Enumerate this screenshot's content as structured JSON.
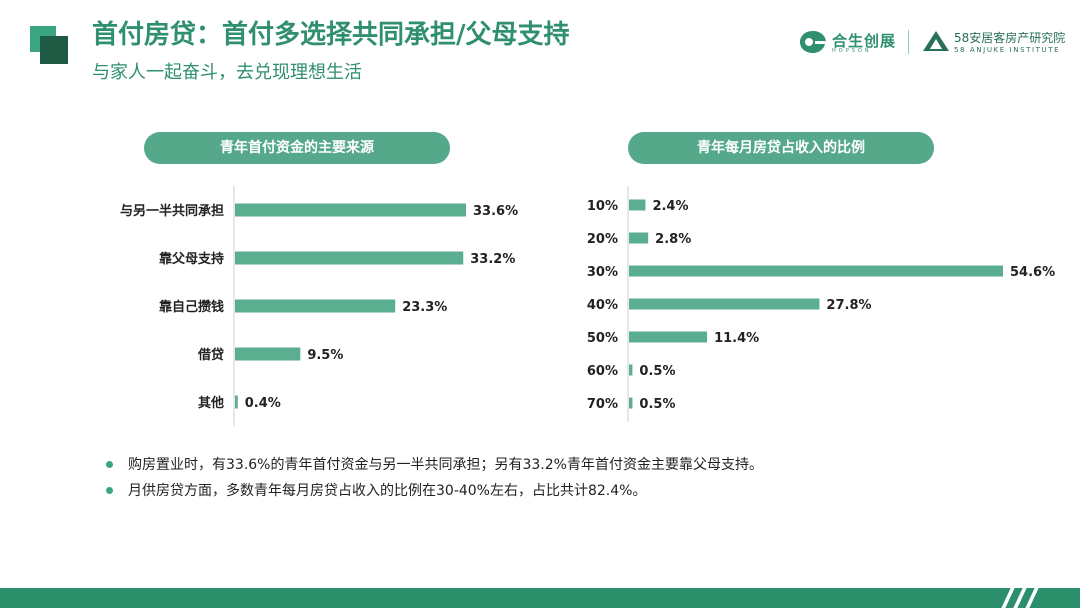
{
  "header": {
    "title": "首付房贷：首付多选择共同承担/父母支持",
    "subtitle": "与家人一起奋斗，去兑现理想生活",
    "logo1_text": "合生创展",
    "logo1_sub": "HOPSON",
    "logo2_text": "58安居客房产研究院",
    "logo2_sub": "58 ANJUKE INSTITUTE"
  },
  "chart_data": [
    {
      "type": "bar",
      "orientation": "horizontal",
      "title": "青年首付资金的主要来源",
      "categories": [
        "与另一半共同承担",
        "靠父母支持",
        "靠自己攒钱",
        "借贷",
        "其他"
      ],
      "values": [
        33.6,
        33.2,
        23.3,
        9.5,
        0.4
      ],
      "value_labels": [
        "33.6%",
        "33.2%",
        "23.3%",
        "9.5%",
        "0.4%"
      ],
      "unit": "%",
      "xlim": [
        0,
        33.6
      ],
      "grid": false,
      "legend": "none"
    },
    {
      "type": "bar",
      "orientation": "horizontal",
      "title": "青年每月房贷占收入的比例",
      "categories": [
        "10%",
        "20%",
        "30%",
        "40%",
        "50%",
        "60%",
        "70%"
      ],
      "values": [
        2.4,
        2.8,
        54.6,
        27.8,
        11.4,
        0.5,
        0.5
      ],
      "value_labels": [
        "2.4%",
        "2.8%",
        "54.6%",
        "27.8%",
        "11.4%",
        "0.5%",
        "0.5%"
      ],
      "unit": "%",
      "xlim": [
        0,
        54.6
      ],
      "grid": false,
      "legend": "none"
    }
  ],
  "bullets": [
    "购房置业时，有33.6%的青年首付资金与另一半共同承担；另有33.2%青年首付资金主要靠父母支持。",
    "月供房贷方面，多数青年每月房贷占收入的比例在30-40%左右，占比共计82.4%。"
  ],
  "colors": {
    "accent": "#2f8f6e",
    "bar": "#5bae8f",
    "pill": "#55a98a",
    "footer": "#2a8f6a"
  }
}
